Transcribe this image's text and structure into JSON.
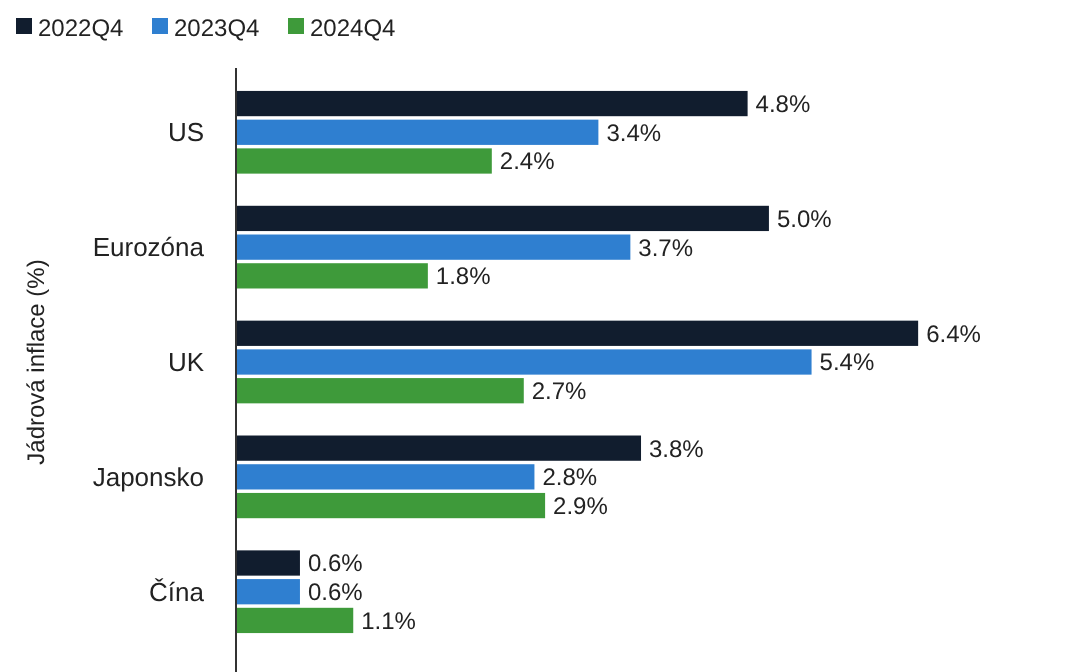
{
  "chart_data": {
    "type": "bar",
    "orientation": "horizontal",
    "ylabel": "Jádrová inflace (%)",
    "categories": [
      "US",
      "Eurozóna",
      "UK",
      "Japonsko",
      "Čína"
    ],
    "series": [
      {
        "name": "2022Q4",
        "color": "#111d2e",
        "values": [
          4.8,
          5.0,
          6.4,
          3.8,
          0.6
        ],
        "value_labels": [
          "4.8%",
          "5.0%",
          "6.4%",
          "3.8%",
          "0.6%"
        ]
      },
      {
        "name": "2023Q4",
        "color": "#2f7fd0",
        "values": [
          3.4,
          3.7,
          5.4,
          2.8,
          0.6
        ],
        "value_labels": [
          "3.4%",
          "3.7%",
          "5.4%",
          "2.8%",
          "0.6%"
        ]
      },
      {
        "name": "2024Q4",
        "color": "#3e9a3a",
        "values": [
          2.4,
          1.8,
          2.7,
          2.9,
          1.1
        ],
        "value_labels": [
          "2.4%",
          "1.8%",
          "2.7%",
          "2.9%",
          "1.1%"
        ]
      }
    ],
    "legend": "top left",
    "grid": false
  }
}
